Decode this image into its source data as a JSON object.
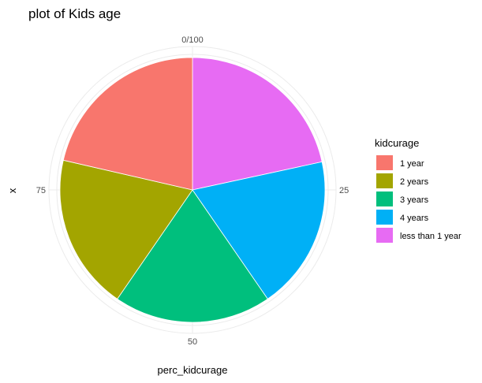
{
  "chart_data": {
    "type": "pie",
    "title": "plot of Kids age",
    "xlabel": "perc_kidcurage",
    "ylabel": "x",
    "radial_ticks": [
      "0/100",
      "25",
      "50",
      "75"
    ],
    "legend": {
      "title": "kidcurage",
      "position": "right"
    },
    "categories": [
      "less than 1 year",
      "4 years",
      "3 years",
      "2 years",
      "1 year"
    ],
    "values": [
      21.6,
      18.8,
      19.2,
      19.0,
      21.4
    ],
    "colors": [
      "#E76BF3",
      "#00B0F6",
      "#00BF7D",
      "#A3A500",
      "#F8766D"
    ],
    "legend_order": [
      "1 year",
      "2 years",
      "3 years",
      "4 years",
      "less than 1 year"
    ],
    "legend_colors": [
      "#F8766D",
      "#A3A500",
      "#00BF7D",
      "#00B0F6",
      "#E76BF3"
    ]
  }
}
